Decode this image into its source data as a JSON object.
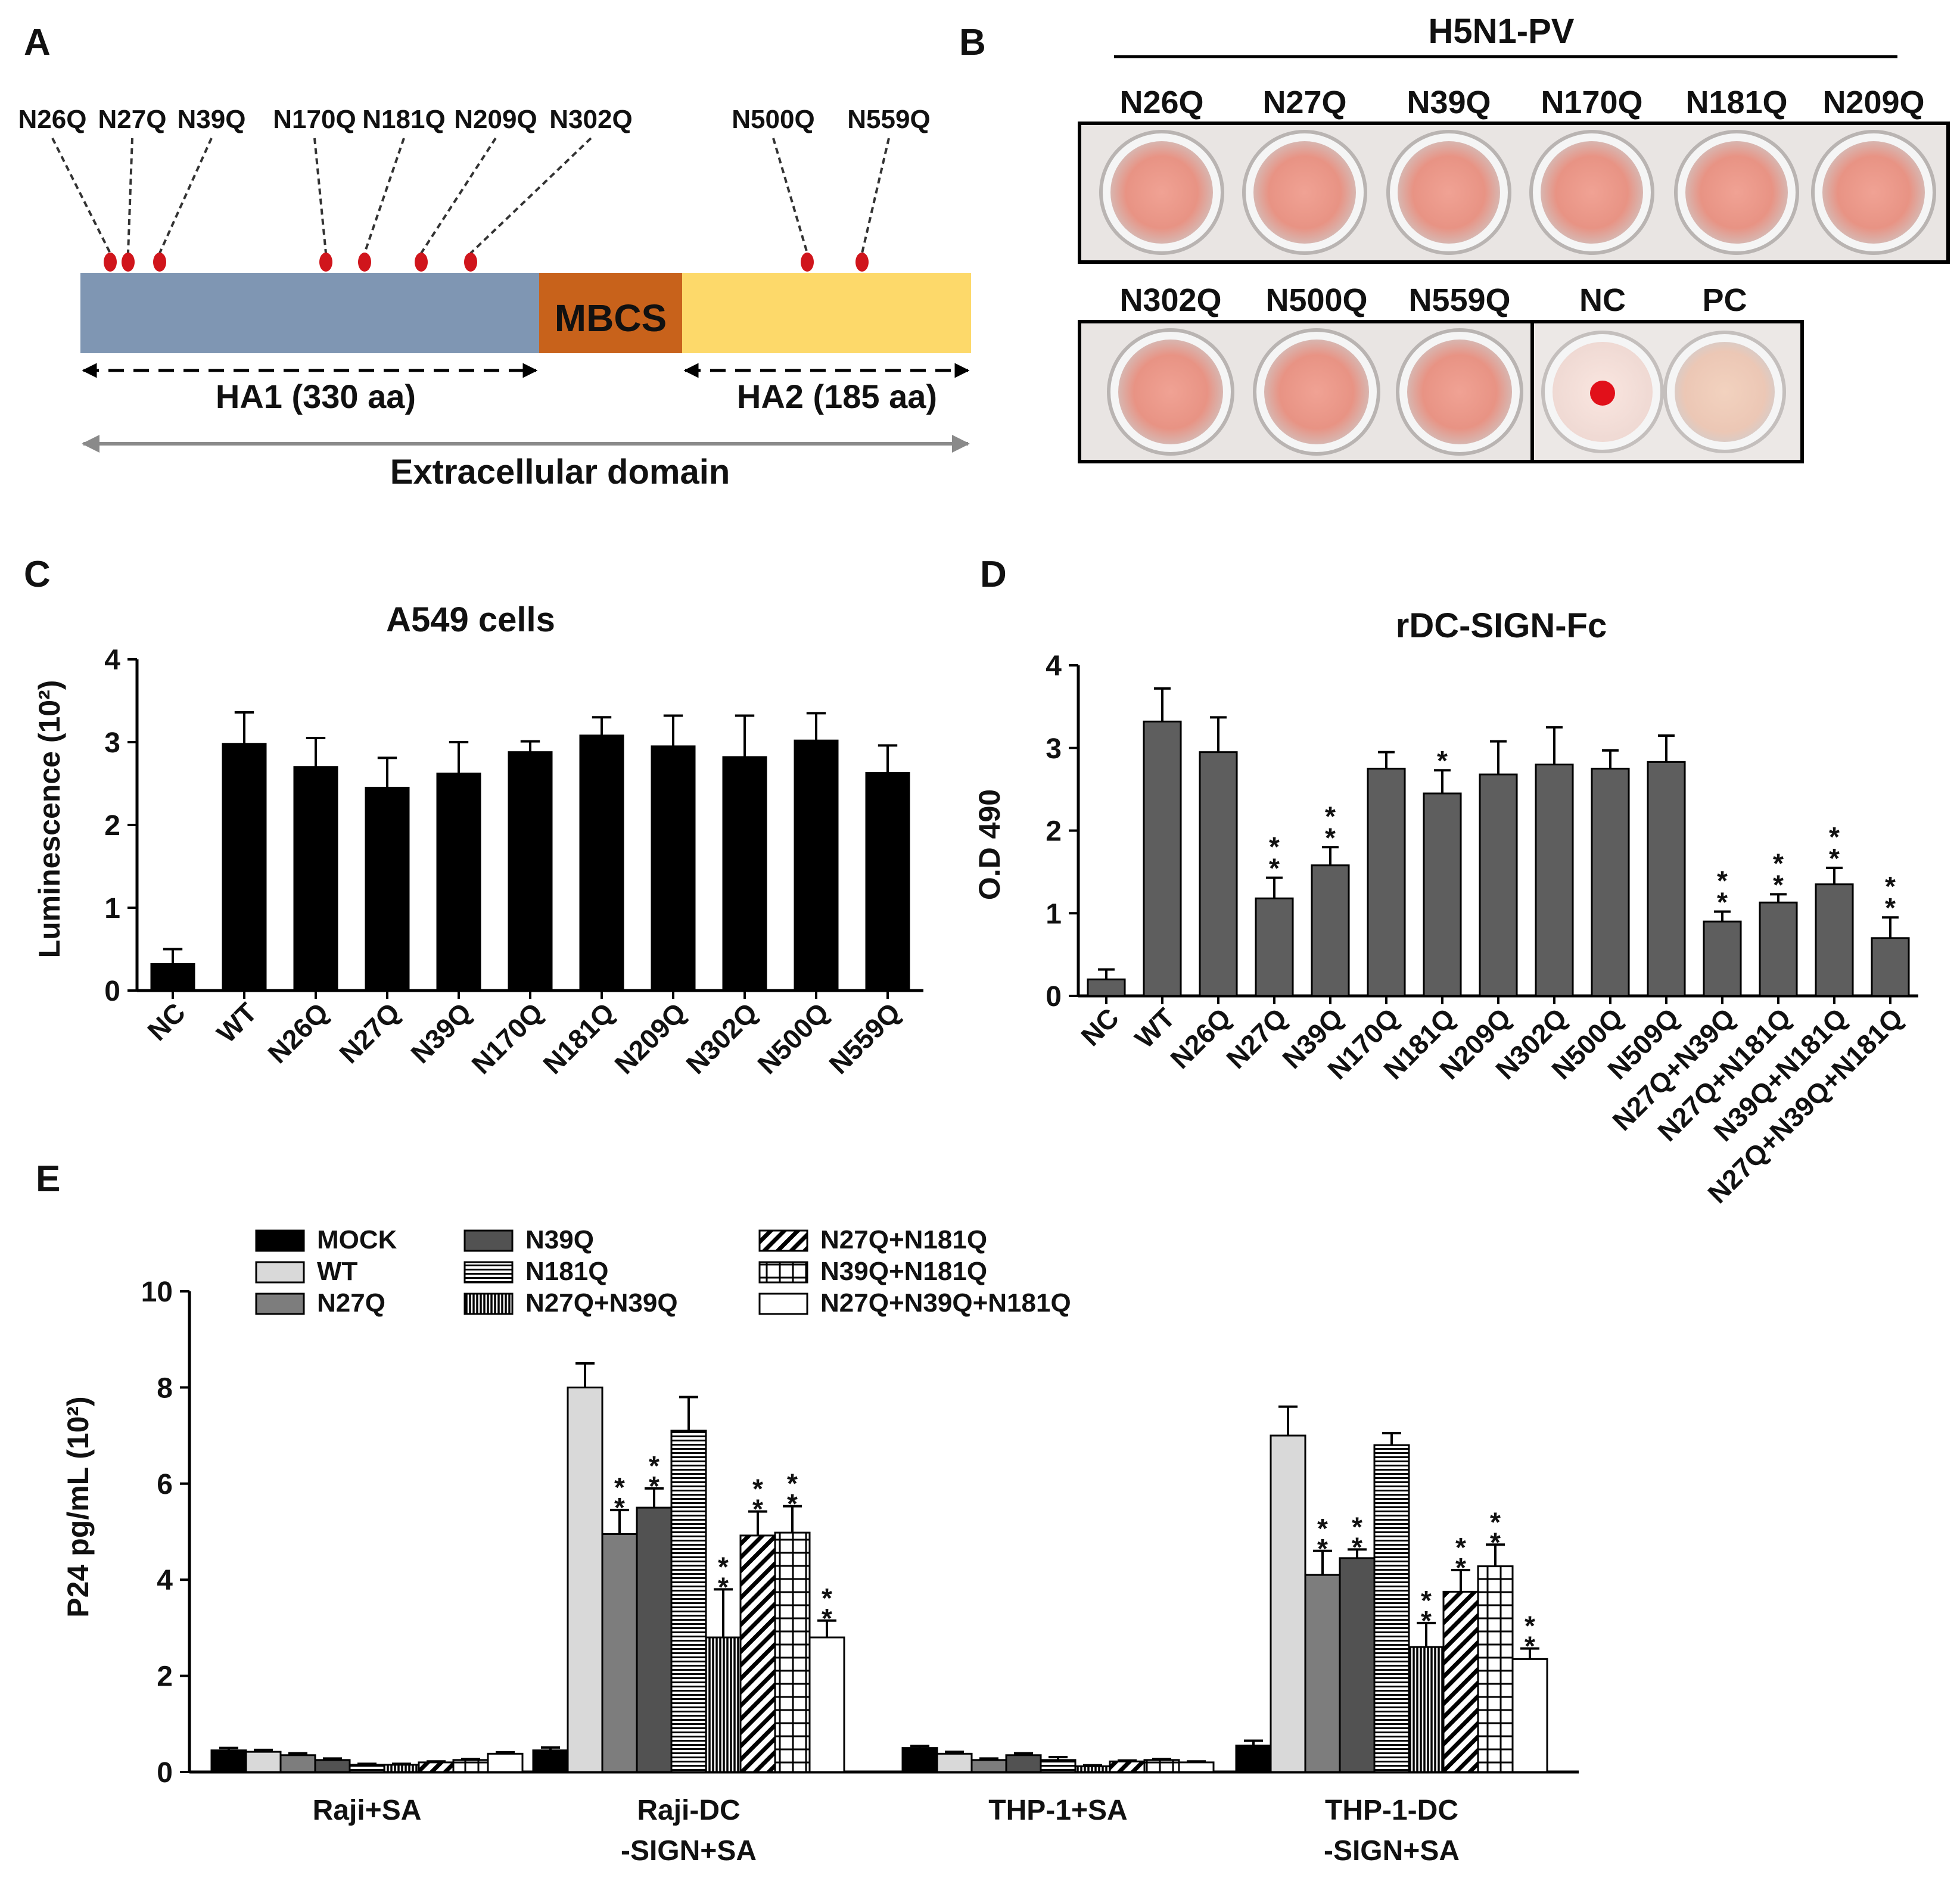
{
  "panels": {
    "A": {
      "label": "A",
      "site_labels": [
        "N26Q",
        "N27Q",
        "N39Q",
        "N170Q",
        "N181Q",
        "N209Q",
        "N302Q",
        "N500Q",
        "N559Q"
      ],
      "segments": [
        {
          "name": "HA1",
          "color": "#7f96b3"
        },
        {
          "name": "MBCS",
          "label": "MBCS",
          "color": "#c8621b"
        },
        {
          "name": "HA2",
          "color": "#fdd96a"
        }
      ],
      "ha1_label": "HA1 (330 aa)",
      "ha2_label": "HA2 (185 aa)",
      "domain_label": "Extracellular domain",
      "site_color": "#d0151c"
    },
    "B": {
      "label": "B",
      "title": "H5N1-PV",
      "row1": [
        "N26Q",
        "N27Q",
        "N39Q",
        "N170Q",
        "N181Q",
        "N209Q"
      ],
      "row2": [
        "N302Q",
        "N500Q",
        "N559Q"
      ],
      "controls": [
        "NC",
        "PC"
      ]
    },
    "C": {
      "label": "C"
    },
    "D": {
      "label": "D"
    },
    "E": {
      "label": "E"
    }
  },
  "chart_data": [
    {
      "panel": "C",
      "type": "bar",
      "title": "A549 cells",
      "ylabel": "Luminescence (10²)",
      "ylim": [
        0,
        4
      ],
      "yticks": [
        0,
        1,
        2,
        3,
        4
      ],
      "categories": [
        "NC",
        "WT",
        "N26Q",
        "N27Q",
        "N39Q",
        "N170Q",
        "N181Q",
        "N209Q",
        "N302Q",
        "N500Q",
        "N559Q"
      ],
      "values": [
        0.32,
        2.98,
        2.7,
        2.45,
        2.62,
        2.88,
        3.08,
        2.95,
        2.82,
        3.02,
        2.63
      ],
      "errors": [
        0.18,
        0.38,
        0.35,
        0.36,
        0.38,
        0.13,
        0.22,
        0.37,
        0.5,
        0.33,
        0.33
      ],
      "color": "#000000"
    },
    {
      "panel": "D",
      "type": "bar",
      "title": "rDC-SIGN-Fc",
      "ylabel": "O.D 490",
      "ylim": [
        0,
        4
      ],
      "yticks": [
        0,
        1,
        2,
        3,
        4
      ],
      "categories": [
        "NC",
        "WT",
        "N26Q",
        "N27Q",
        "N39Q",
        "N170Q",
        "N181Q",
        "N209Q",
        "N302Q",
        "N500Q",
        "N509Q",
        "N27Q+N39Q",
        "N27Q+N181Q",
        "N39Q+N181Q",
        "N27Q+N39Q+N181Q"
      ],
      "values": [
        0.2,
        3.32,
        2.95,
        1.18,
        1.58,
        2.75,
        2.45,
        2.68,
        2.8,
        2.75,
        2.83,
        0.9,
        1.13,
        1.35,
        0.7
      ],
      "errors": [
        0.12,
        0.4,
        0.42,
        0.25,
        0.22,
        0.2,
        0.28,
        0.4,
        0.45,
        0.22,
        0.32,
        0.12,
        0.1,
        0.2,
        0.25
      ],
      "significance": [
        "",
        "",
        "",
        "**",
        "**",
        "",
        "*",
        "",
        "",
        "",
        "",
        "**",
        "**",
        "**",
        "**"
      ],
      "color": "#5e5e5e"
    },
    {
      "panel": "E",
      "type": "bar",
      "title": "",
      "ylabel": "P24 pg/mL (10²)",
      "ylim": [
        0,
        10
      ],
      "yticks": [
        0,
        2,
        4,
        6,
        8,
        10
      ],
      "categories": [
        "Raji+SA",
        "Raji-DC\n-SIGN+SA",
        "THP-1+SA",
        "THP-1-DC\n-SIGN+SA"
      ],
      "series": [
        {
          "name": "MOCK",
          "pattern": "solid-black",
          "values": [
            0.45,
            0.45,
            0.5,
            0.55
          ],
          "errors": [
            0.05,
            0.06,
            0.04,
            0.1
          ],
          "significance": [
            "",
            "",
            "",
            ""
          ]
        },
        {
          "name": "WT",
          "pattern": "light-gray",
          "values": [
            0.42,
            8.0,
            0.38,
            7.0
          ],
          "errors": [
            0.04,
            0.5,
            0.04,
            0.6
          ],
          "significance": [
            "",
            "",
            "",
            ""
          ]
        },
        {
          "name": "N27Q",
          "pattern": "mid-gray",
          "values": [
            0.35,
            4.95,
            0.25,
            4.1
          ],
          "errors": [
            0.04,
            0.5,
            0.03,
            0.5
          ],
          "significance": [
            "",
            "**",
            "",
            "**"
          ]
        },
        {
          "name": "N39Q",
          "pattern": "dark-gray",
          "values": [
            0.25,
            5.5,
            0.35,
            4.45
          ],
          "errors": [
            0.03,
            0.4,
            0.04,
            0.18
          ],
          "significance": [
            "",
            "**",
            "",
            "**"
          ]
        },
        {
          "name": "N181Q",
          "pattern": "horizontal-lines",
          "values": [
            0.15,
            7.1,
            0.25,
            6.8
          ],
          "errors": [
            0.02,
            0.7,
            0.06,
            0.25
          ],
          "significance": [
            "",
            "",
            "",
            ""
          ]
        },
        {
          "name": "N27Q+N39Q",
          "pattern": "vertical-lines",
          "values": [
            0.15,
            2.8,
            0.12,
            2.6
          ],
          "errors": [
            0.02,
            1.0,
            0.02,
            0.5
          ],
          "significance": [
            "",
            "**",
            "",
            "**"
          ]
        },
        {
          "name": "N27Q+N181Q",
          "pattern": "diagonal-lines",
          "values": [
            0.2,
            4.92,
            0.22,
            3.75
          ],
          "errors": [
            0.02,
            0.5,
            0.02,
            0.45
          ],
          "significance": [
            "",
            "**",
            "",
            "**"
          ]
        },
        {
          "name": "N39Q+N181Q",
          "pattern": "grid",
          "values": [
            0.25,
            4.98,
            0.25,
            4.28
          ],
          "errors": [
            0.02,
            0.55,
            0.02,
            0.45
          ],
          "significance": [
            "",
            "**",
            "",
            "**"
          ]
        },
        {
          "name": "N27Q+N39Q+N181Q",
          "pattern": "white",
          "values": [
            0.38,
            2.8,
            0.2,
            2.35
          ],
          "errors": [
            0.03,
            0.35,
            0.02,
            0.22
          ],
          "significance": [
            "",
            "**",
            "",
            "**"
          ]
        }
      ]
    }
  ]
}
